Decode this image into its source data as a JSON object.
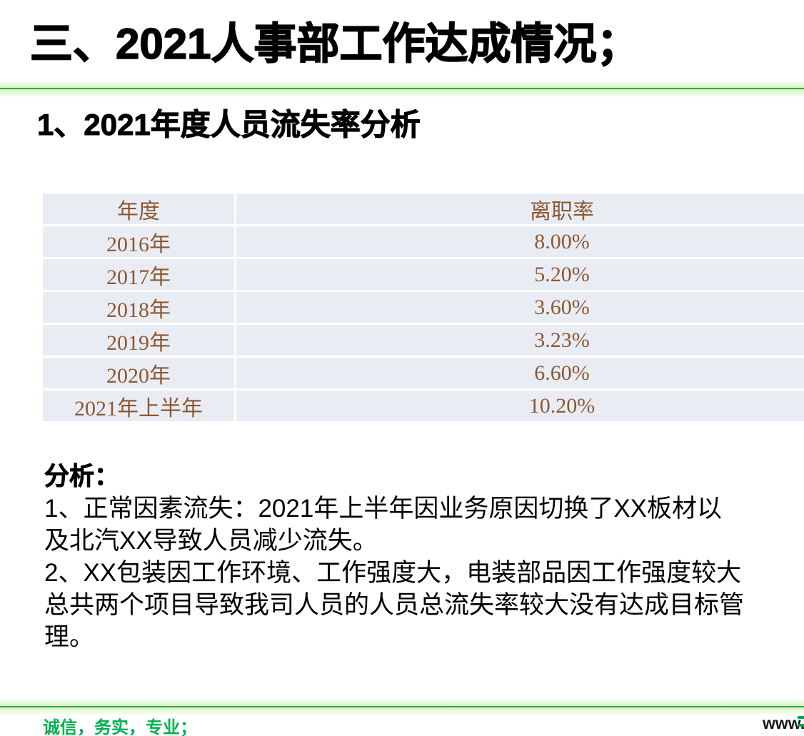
{
  "title": "三、2021人事部工作达成情况；",
  "section_heading": "1、2021年度人员流失率分析",
  "table": {
    "columns": [
      "年度",
      "离职率"
    ],
    "rows": [
      {
        "year": "2016年",
        "rate": "8.00%"
      },
      {
        "year": "2017年",
        "rate": "5.20%"
      },
      {
        "year": "2018年",
        "rate": "3.60%"
      },
      {
        "year": "2019年",
        "rate": "3.23%"
      },
      {
        "year": "2020年",
        "rate": "6.60%"
      },
      {
        "year": "2021年上半年",
        "rate": "10.20%"
      }
    ]
  },
  "analysis": {
    "label": "分析：",
    "lines": [
      "1、正常因素流失：2021年上半年因业务原因切换了XX板材以",
      "及北汽XX导致人员减少流失。",
      "2、XX包装因工作环境、工作强度大，电装部品因工作强度较大",
      "总共两个项目导致我司人员的人员总流失率较大没有达成目标管",
      "理。"
    ]
  },
  "footer": {
    "slogan": "诚信，务实，专业；",
    "url_fragment": "www."
  },
  "colors": {
    "accent_green": "#00b050",
    "divider_green": "#2dac4a",
    "table_text_brown": "#8d5732",
    "table_cell_bg": "#e9edf3"
  },
  "chart_data": {
    "type": "table",
    "title": "2021年度人员流失率分析",
    "columns": [
      "年度",
      "离职率"
    ],
    "rows": [
      [
        "2016年",
        "8.00%"
      ],
      [
        "2017年",
        "5.20%"
      ],
      [
        "2018年",
        "3.60%"
      ],
      [
        "2019年",
        "3.23%"
      ],
      [
        "2020年",
        "6.60%"
      ],
      [
        "2021年上半年",
        "10.20%"
      ]
    ]
  }
}
